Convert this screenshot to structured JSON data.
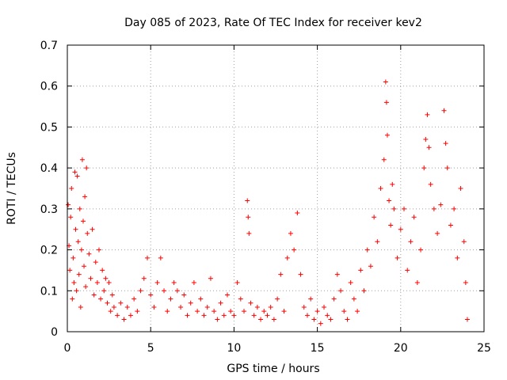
{
  "chart_data": {
    "type": "scatter",
    "title": "Day 085 of 2023, Rate Of TEC Index for receiver kev2",
    "xlabel": "GPS time / hours",
    "ylabel": "ROTI / TECUs",
    "xlim": [
      0,
      25
    ],
    "ylim": [
      0,
      0.7
    ],
    "x_ticks": [
      "0",
      "5",
      "10",
      "15",
      "20",
      "25"
    ],
    "y_ticks": [
      "0",
      "0.1",
      "0.2",
      "0.3",
      "0.4",
      "0.5",
      "0.6",
      "0.7"
    ],
    "x_tick_values": [
      0,
      5,
      10,
      15,
      20,
      25
    ],
    "y_tick_values": [
      0,
      0.1,
      0.2,
      0.3,
      0.4,
      0.5,
      0.6,
      0.7
    ],
    "grid": true,
    "marker": "+",
    "color": "#ff0000",
    "points": [
      [
        0.05,
        0.31
      ],
      [
        0.1,
        0.21
      ],
      [
        0.15,
        0.15
      ],
      [
        0.2,
        0.28
      ],
      [
        0.25,
        0.35
      ],
      [
        0.3,
        0.08
      ],
      [
        0.35,
        0.18
      ],
      [
        0.4,
        0.12
      ],
      [
        0.45,
        0.39
      ],
      [
        0.5,
        0.25
      ],
      [
        0.55,
        0.1
      ],
      [
        0.6,
        0.38
      ],
      [
        0.65,
        0.22
      ],
      [
        0.7,
        0.14
      ],
      [
        0.75,
        0.3
      ],
      [
        0.8,
        0.06
      ],
      [
        0.85,
        0.2
      ],
      [
        0.9,
        0.42
      ],
      [
        0.95,
        0.27
      ],
      [
        1.0,
        0.16
      ],
      [
        1.05,
        0.33
      ],
      [
        1.1,
        0.11
      ],
      [
        1.15,
        0.4
      ],
      [
        1.2,
        0.24
      ],
      [
        1.3,
        0.19
      ],
      [
        1.4,
        0.13
      ],
      [
        1.5,
        0.25
      ],
      [
        1.6,
        0.09
      ],
      [
        1.7,
        0.17
      ],
      [
        1.8,
        0.12
      ],
      [
        1.9,
        0.2
      ],
      [
        2.0,
        0.08
      ],
      [
        2.1,
        0.15
      ],
      [
        2.2,
        0.1
      ],
      [
        2.3,
        0.13
      ],
      [
        2.4,
        0.07
      ],
      [
        2.5,
        0.12
      ],
      [
        2.6,
        0.05
      ],
      [
        2.7,
        0.09
      ],
      [
        2.8,
        0.06
      ],
      [
        3.0,
        0.04
      ],
      [
        3.2,
        0.07
      ],
      [
        3.4,
        0.03
      ],
      [
        3.6,
        0.06
      ],
      [
        3.8,
        0.04
      ],
      [
        4.0,
        0.08
      ],
      [
        4.2,
        0.05
      ],
      [
        4.4,
        0.1
      ],
      [
        4.6,
        0.13
      ],
      [
        4.8,
        0.18
      ],
      [
        5.0,
        0.09
      ],
      [
        5.2,
        0.06
      ],
      [
        5.4,
        0.12
      ],
      [
        5.6,
        0.18
      ],
      [
        5.8,
        0.1
      ],
      [
        6.0,
        0.05
      ],
      [
        6.2,
        0.08
      ],
      [
        6.4,
        0.12
      ],
      [
        6.6,
        0.1
      ],
      [
        6.8,
        0.06
      ],
      [
        7.0,
        0.09
      ],
      [
        7.2,
        0.04
      ],
      [
        7.4,
        0.07
      ],
      [
        7.6,
        0.12
      ],
      [
        7.8,
        0.05
      ],
      [
        8.0,
        0.08
      ],
      [
        8.2,
        0.04
      ],
      [
        8.4,
        0.06
      ],
      [
        8.6,
        0.13
      ],
      [
        8.8,
        0.05
      ],
      [
        9.0,
        0.03
      ],
      [
        9.2,
        0.07
      ],
      [
        9.4,
        0.04
      ],
      [
        9.6,
        0.09
      ],
      [
        9.8,
        0.05
      ],
      [
        10.0,
        0.04
      ],
      [
        10.2,
        0.12
      ],
      [
        10.4,
        0.08
      ],
      [
        10.6,
        0.05
      ],
      [
        10.8,
        0.32
      ],
      [
        10.85,
        0.28
      ],
      [
        10.9,
        0.24
      ],
      [
        11.0,
        0.07
      ],
      [
        11.2,
        0.04
      ],
      [
        11.4,
        0.06
      ],
      [
        11.6,
        0.03
      ],
      [
        11.8,
        0.05
      ],
      [
        12.0,
        0.04
      ],
      [
        12.2,
        0.06
      ],
      [
        12.4,
        0.03
      ],
      [
        12.6,
        0.08
      ],
      [
        12.8,
        0.14
      ],
      [
        13.0,
        0.05
      ],
      [
        13.2,
        0.18
      ],
      [
        13.4,
        0.24
      ],
      [
        13.6,
        0.2
      ],
      [
        13.8,
        0.29
      ],
      [
        14.0,
        0.14
      ],
      [
        14.2,
        0.06
      ],
      [
        14.4,
        0.04
      ],
      [
        14.6,
        0.08
      ],
      [
        14.8,
        0.03
      ],
      [
        15.0,
        0.05
      ],
      [
        15.2,
        0.02
      ],
      [
        15.4,
        0.06
      ],
      [
        15.6,
        0.04
      ],
      [
        15.8,
        0.03
      ],
      [
        16.0,
        0.08
      ],
      [
        16.2,
        0.14
      ],
      [
        16.4,
        0.1
      ],
      [
        16.6,
        0.05
      ],
      [
        16.8,
        0.03
      ],
      [
        17.0,
        0.12
      ],
      [
        17.2,
        0.08
      ],
      [
        17.4,
        0.05
      ],
      [
        17.6,
        0.15
      ],
      [
        17.8,
        0.1
      ],
      [
        18.0,
        0.2
      ],
      [
        18.2,
        0.16
      ],
      [
        18.4,
        0.28
      ],
      [
        18.6,
        0.22
      ],
      [
        18.8,
        0.35
      ],
      [
        19.0,
        0.42
      ],
      [
        19.1,
        0.61
      ],
      [
        19.15,
        0.56
      ],
      [
        19.2,
        0.48
      ],
      [
        19.3,
        0.32
      ],
      [
        19.4,
        0.26
      ],
      [
        19.5,
        0.36
      ],
      [
        19.6,
        0.3
      ],
      [
        19.8,
        0.18
      ],
      [
        20.0,
        0.25
      ],
      [
        20.2,
        0.3
      ],
      [
        20.4,
        0.15
      ],
      [
        20.6,
        0.22
      ],
      [
        20.8,
        0.28
      ],
      [
        21.0,
        0.12
      ],
      [
        21.2,
        0.2
      ],
      [
        21.4,
        0.4
      ],
      [
        21.5,
        0.47
      ],
      [
        21.6,
        0.53
      ],
      [
        21.7,
        0.45
      ],
      [
        21.8,
        0.36
      ],
      [
        22.0,
        0.3
      ],
      [
        22.2,
        0.24
      ],
      [
        22.4,
        0.31
      ],
      [
        22.6,
        0.54
      ],
      [
        22.7,
        0.46
      ],
      [
        22.8,
        0.4
      ],
      [
        23.0,
        0.26
      ],
      [
        23.2,
        0.3
      ],
      [
        23.4,
        0.18
      ],
      [
        23.6,
        0.35
      ],
      [
        23.8,
        0.22
      ],
      [
        23.9,
        0.12
      ],
      [
        24.0,
        0.03
      ]
    ]
  }
}
